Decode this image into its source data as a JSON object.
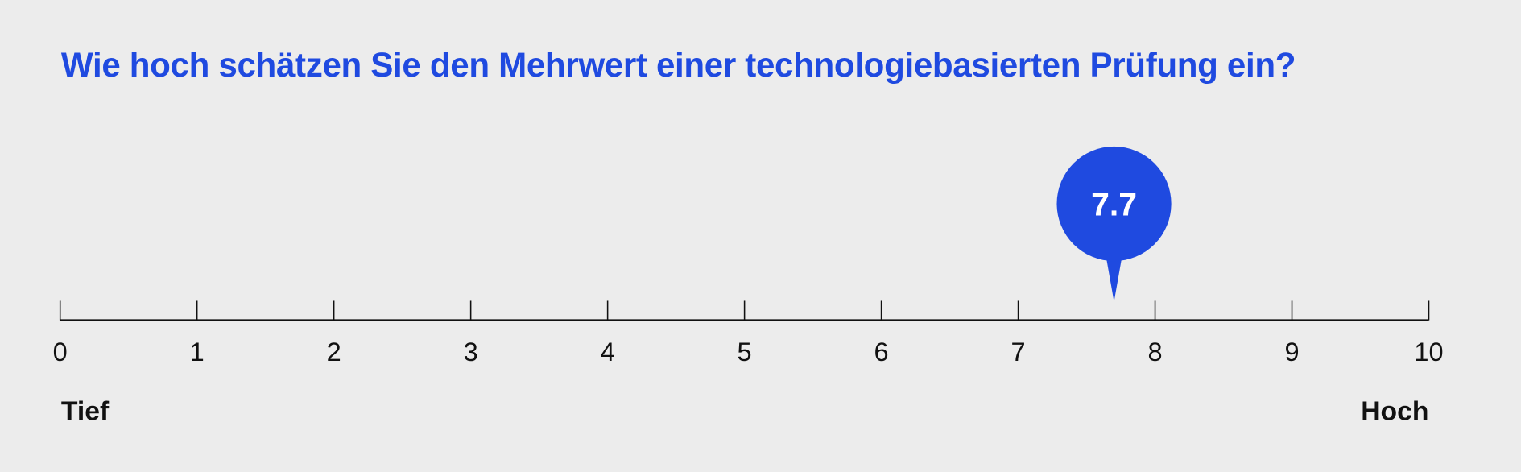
{
  "chart_data": {
    "type": "scale-marker",
    "title": "Wie hoch schätzen Sie den Mehrwert einer technologiebasierten Prüfung ein?",
    "xlim": [
      0,
      10
    ],
    "ticks": [
      "0",
      "1",
      "2",
      "3",
      "4",
      "5",
      "6",
      "7",
      "8",
      "9",
      "10"
    ],
    "value": 7.7,
    "value_label": "7.7",
    "low_label": "Tief",
    "high_label": "Hoch",
    "accent_color": "#1f4ae0",
    "axis_color": "#111111"
  }
}
